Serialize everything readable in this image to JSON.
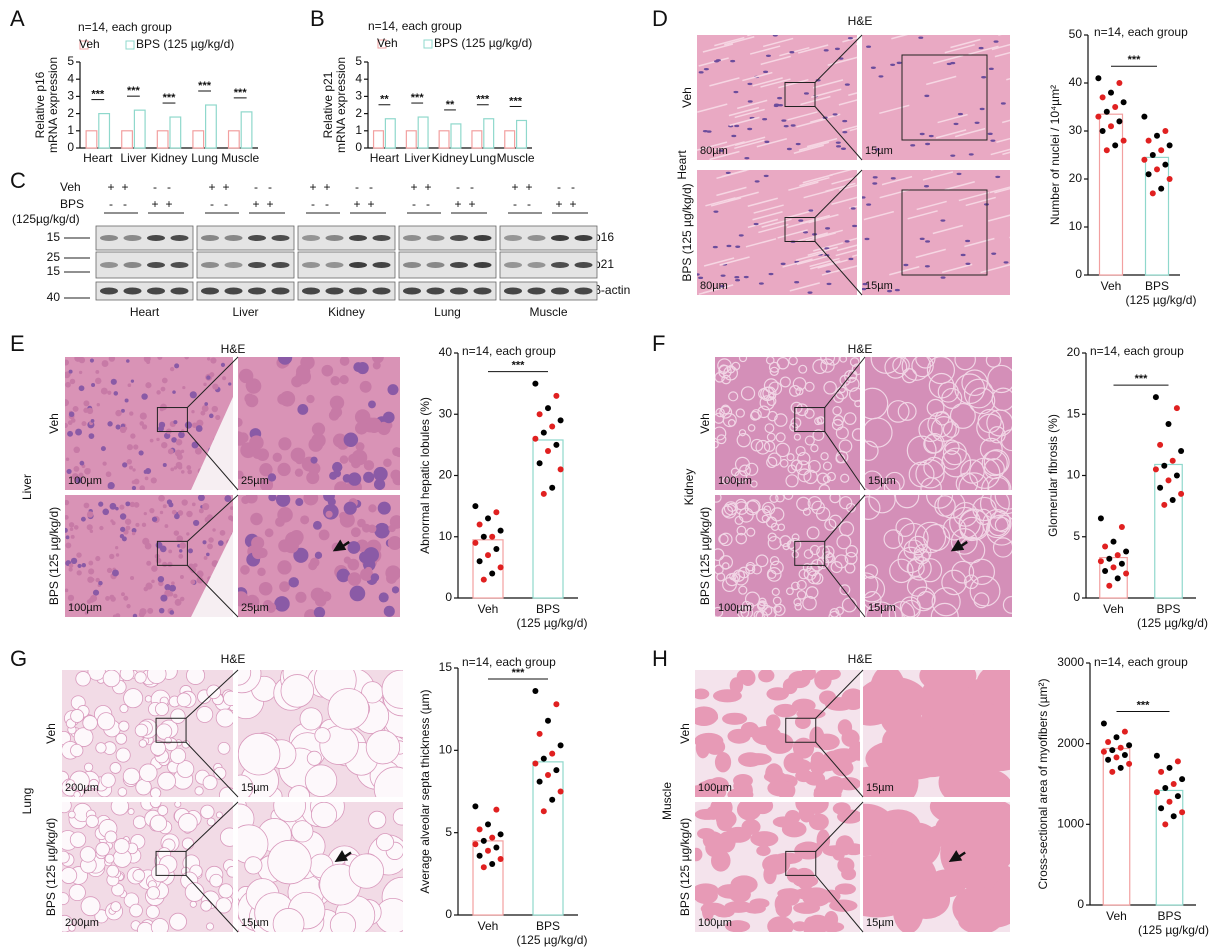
{
  "chart_data": [
    {
      "type": "bar",
      "title": "n=14, each group",
      "ylabel": [
        "Relative p16",
        "mRNA expression"
      ],
      "categories": [
        "Heart",
        "Liver",
        "Kidney",
        "Lung",
        "Muscle"
      ],
      "series": [
        {
          "name": "Veh",
          "color": "#f2a0a0",
          "values": [
            1.0,
            1.0,
            1.0,
            1.0,
            1.0
          ]
        },
        {
          "name": "BPS (125 µg/kg/d)",
          "color": "#8fd8cc",
          "values": [
            2.0,
            2.2,
            1.8,
            2.5,
            2.1
          ]
        }
      ],
      "annotations": [
        "***",
        "***",
        "***",
        "***",
        "***"
      ],
      "ylim": [
        0,
        5
      ],
      "yticks": [
        0,
        1,
        2,
        3,
        4,
        5
      ]
    },
    {
      "type": "bar",
      "title": "n=14, each group",
      "ylabel": [
        "Relative p21",
        "mRNA expression"
      ],
      "categories": [
        "Heart",
        "Liver",
        "Kidney",
        "Lung",
        "Muscle"
      ],
      "series": [
        {
          "name": "Veh",
          "color": "#f2a0a0",
          "values": [
            1.0,
            1.0,
            1.0,
            1.0,
            1.0
          ]
        },
        {
          "name": "BPS (125 µg/kg/d)",
          "color": "#8fd8cc",
          "values": [
            1.7,
            1.8,
            1.4,
            1.7,
            1.6
          ]
        }
      ],
      "annotations": [
        "**",
        "***",
        "**",
        "***",
        "***"
      ],
      "ylim": [
        0,
        5
      ],
      "yticks": [
        0,
        1,
        2,
        3,
        4,
        5
      ]
    },
    {
      "type": "bar",
      "title": "n=14, each group",
      "ylabel": "Number of nuclei / 10⁴µm²",
      "categories": [
        "Veh",
        "BPS"
      ],
      "category_note": "(125 µg/kg/d)",
      "values": [
        33.5,
        24.5
      ],
      "colors": [
        "#f2a0a0",
        "#8fd8cc"
      ],
      "points": [
        [
          41,
          40,
          38,
          37,
          36,
          35,
          34,
          33,
          32,
          31,
          30,
          28,
          27,
          26
        ],
        [
          33,
          30,
          29,
          28,
          27,
          26,
          25,
          24,
          23,
          22,
          21,
          20,
          18,
          17
        ]
      ],
      "point_colors": [
        "#000000",
        "#e02020"
      ],
      "annotations": [
        "***"
      ],
      "ylim": [
        0,
        50
      ],
      "yticks": [
        0,
        10,
        20,
        30,
        40,
        50
      ]
    },
    {
      "type": "bar",
      "title": "n=14, each group",
      "ylabel": "Abnormal hepatic lobules (%)",
      "categories": [
        "Veh",
        "BPS"
      ],
      "category_note": "(125 µg/kg/d)",
      "values": [
        9.5,
        25.8
      ],
      "colors": [
        "#f2a0a0",
        "#8fd8cc"
      ],
      "points": [
        [
          15,
          14,
          13,
          12,
          11,
          10,
          10,
          9,
          8,
          7,
          6,
          5,
          4,
          3
        ],
        [
          35,
          33,
          31,
          30,
          29,
          28,
          27,
          26,
          25,
          24,
          22,
          21,
          18,
          17
        ]
      ],
      "point_colors": [
        "#000000",
        "#e02020"
      ],
      "annotations": [
        "***"
      ],
      "ylim": [
        0,
        40
      ],
      "yticks": [
        0,
        10,
        20,
        30,
        40
      ]
    },
    {
      "type": "bar",
      "title": "n=14, each group",
      "ylabel": "Glomerular fibrosis (%)",
      "categories": [
        "Veh",
        "BPS"
      ],
      "category_note": "(125 µg/kg/d)",
      "values": [
        3.3,
        10.9
      ],
      "colors": [
        "#f2a0a0",
        "#8fd8cc"
      ],
      "points": [
        [
          6.5,
          5.8,
          4.6,
          4.2,
          3.8,
          3.5,
          3.2,
          3.0,
          2.8,
          2.5,
          2.2,
          2.0,
          1.6,
          1.0
        ],
        [
          16.4,
          15.5,
          14.2,
          12.5,
          12,
          11.2,
          10.8,
          10.5,
          10,
          9.6,
          9,
          8.5,
          8,
          7.6
        ]
      ],
      "point_colors": [
        "#000000",
        "#e02020"
      ],
      "annotations": [
        "***"
      ],
      "ylim": [
        0,
        20
      ],
      "yticks": [
        0,
        5,
        10,
        15,
        20
      ]
    },
    {
      "type": "bar",
      "title": "n=14, each group",
      "ylabel": "Average alveolar septa thickness (µm)",
      "categories": [
        "Veh",
        "BPS"
      ],
      "category_note": "(125 µg/kg/d)",
      "values": [
        4.5,
        9.3
      ],
      "colors": [
        "#f2a0a0",
        "#8fd8cc"
      ],
      "points": [
        [
          6.6,
          6.4,
          5.5,
          5.2,
          4.9,
          4.7,
          4.5,
          4.3,
          4.1,
          3.9,
          3.6,
          3.4,
          3.1,
          2.9
        ],
        [
          13.6,
          12.8,
          11.8,
          11,
          10.3,
          9.8,
          9.5,
          9.2,
          8.8,
          8.5,
          8.1,
          7.5,
          7,
          6.3
        ]
      ],
      "point_colors": [
        "#000000",
        "#e02020"
      ],
      "annotations": [
        "***"
      ],
      "ylim": [
        0,
        15
      ],
      "yticks": [
        0,
        5,
        10,
        15
      ]
    },
    {
      "type": "bar",
      "title": "n=14, each group",
      "ylabel": "Cross-sectional area of myofibers (µm²)",
      "categories": [
        "Veh",
        "BPS"
      ],
      "category_note": "(125 µg/kg/d)",
      "values": [
        1940,
        1420
      ],
      "colors": [
        "#f2a0a0",
        "#8fd8cc"
      ],
      "points": [
        [
          2250,
          2150,
          2080,
          2020,
          1980,
          1950,
          1920,
          1900,
          1860,
          1830,
          1800,
          1750,
          1700,
          1650
        ],
        [
          1850,
          1780,
          1700,
          1650,
          1560,
          1500,
          1450,
          1400,
          1350,
          1280,
          1200,
          1150,
          1100,
          1000
        ]
      ],
      "point_colors": [
        "#000000",
        "#e02020"
      ],
      "annotations": [
        "***"
      ],
      "ylim": [
        0,
        3000
      ],
      "yticks": [
        0,
        1000,
        2000,
        3000
      ]
    }
  ],
  "panel_letters": [
    "A",
    "B",
    "C",
    "D",
    "E",
    "F",
    "G",
    "H"
  ],
  "images": [
    {
      "stain": "H&E",
      "tissue": "Heart",
      "rows": [
        "Veh",
        "BPS (125 µg/kg/d)"
      ],
      "scales": [
        "80µm",
        "15µm"
      ]
    },
    {
      "stain": "H&E",
      "tissue": "Liver",
      "rows": [
        "Veh",
        "BPS (125 µg/kg/d)"
      ],
      "scales": [
        "100µm",
        "25µm"
      ]
    },
    {
      "stain": "H&E",
      "tissue": "Kidney",
      "rows": [
        "Veh",
        "BPS (125 µg/kg/d)"
      ],
      "scales": [
        "100µm",
        "15µm"
      ]
    },
    {
      "stain": "H&E",
      "tissue": "Lung",
      "rows": [
        "Veh",
        "BPS (125 µg/kg/d)"
      ],
      "scales": [
        "200µm",
        "15µm"
      ]
    },
    {
      "stain": "H&E",
      "tissue": "Muscle",
      "rows": [
        "Veh",
        "BPS (125 µg/kg/d)"
      ],
      "scales": [
        "100µm",
        "15µm"
      ]
    }
  ],
  "blot": {
    "groups": [
      "Veh",
      "BPS",
      "(125µg/kg/d)"
    ],
    "veh_signs": [
      "+",
      "+",
      "-",
      "-"
    ],
    "bps_signs": [
      "-",
      "-",
      "+",
      "+"
    ],
    "markers": [
      "15",
      "25",
      "15",
      "40"
    ],
    "bands": [
      "p16",
      "p21",
      "β-actin"
    ],
    "tissues": [
      "Heart",
      "Liver",
      "Kidney",
      "Lung",
      "Muscle"
    ]
  }
}
